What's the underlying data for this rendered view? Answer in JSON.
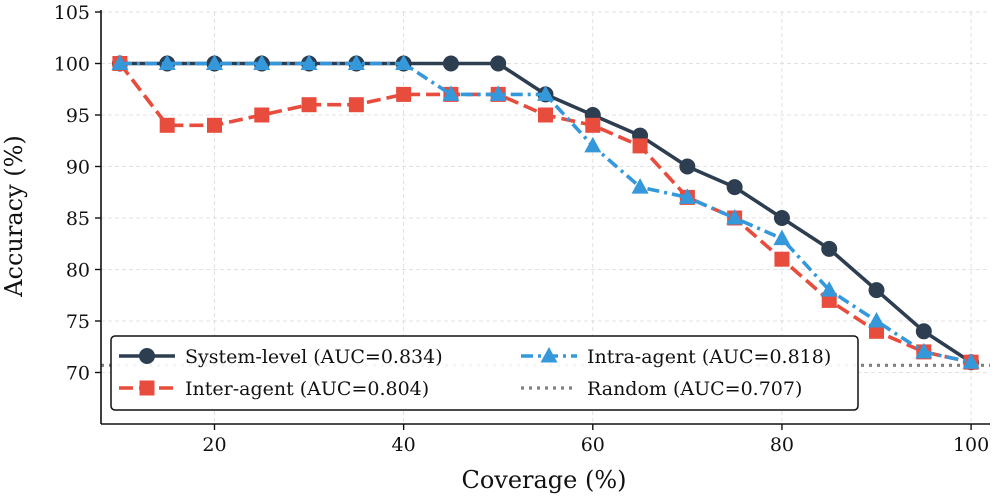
{
  "chart_data": {
    "type": "line",
    "title": "",
    "xlabel": "Coverage (%)",
    "ylabel": "Accuracy (%)",
    "xlim": [
      8,
      102
    ],
    "ylim": [
      65,
      105
    ],
    "xticks": [
      20,
      40,
      60,
      80,
      100
    ],
    "yticks": [
      70,
      75,
      80,
      85,
      90,
      95,
      100,
      105
    ],
    "grid": true,
    "legend_position": "bottom-left",
    "x": [
      10,
      15,
      20,
      25,
      30,
      35,
      40,
      45,
      50,
      55,
      60,
      65,
      70,
      75,
      80,
      85,
      90,
      95,
      100
    ],
    "series": [
      {
        "name": "System-level (AUC=0.834)",
        "color": "#2c3e50",
        "line_style": "solid",
        "marker": "circle",
        "values": [
          100,
          100,
          100,
          100,
          100,
          100,
          100,
          100,
          100,
          97,
          95,
          93,
          90,
          88,
          85,
          82,
          78,
          74,
          71
        ]
      },
      {
        "name": "Inter-agent (AUC=0.804)",
        "color": "#e74c3c",
        "line_style": "dashed",
        "marker": "square",
        "values": [
          100,
          94,
          94,
          95,
          96,
          96,
          97,
          97,
          97,
          95,
          94,
          92,
          87,
          85,
          81,
          77,
          74,
          72,
          71
        ]
      },
      {
        "name": "Intra-agent (AUC=0.818)",
        "color": "#3498db",
        "line_style": "dashdot",
        "marker": "triangle",
        "values": [
          100,
          100,
          100,
          100,
          100,
          100,
          100,
          97,
          97,
          97,
          92,
          88,
          87,
          85,
          83,
          78,
          75,
          72,
          71
        ]
      },
      {
        "name": "Random (AUC=0.707)",
        "color": "#808080",
        "line_style": "dotted",
        "marker": "none",
        "constant": 70.7
      }
    ]
  }
}
